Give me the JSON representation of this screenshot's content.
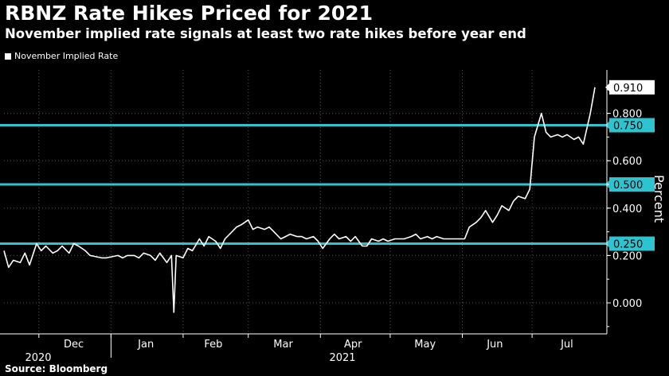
{
  "header": {
    "title": "RBNZ Rate Hikes Priced for 2021",
    "subtitle": "November implied rate signals at least two rate hikes before year end"
  },
  "legend": {
    "label": "November Implied Rate"
  },
  "source": "Source: Bloomberg",
  "colors": {
    "background": "#000000",
    "series": "#ffffff",
    "reference": "#2ec4cf",
    "grid": "#555555"
  },
  "chart_data": {
    "type": "line",
    "title": "RBNZ Rate Hikes Priced for 2021",
    "ylabel": "Percent",
    "ylim": [
      -0.12,
      1.0
    ],
    "yticks": [
      0.0,
      0.2,
      0.4,
      0.6,
      0.8
    ],
    "ytick_labels": [
      "0.000",
      "0.200",
      "0.400",
      "0.600",
      "0.800"
    ],
    "x_month_labels": [
      "Dec",
      "Jan",
      "Feb",
      "Mar",
      "Apr",
      "May",
      "Jun",
      "Jul"
    ],
    "x_year_labels": [
      "2020",
      "2021"
    ],
    "grid": true,
    "legend_position": "top-left",
    "reference_lines": [
      {
        "value": 0.75,
        "label": "0.750"
      },
      {
        "value": 0.5,
        "label": "0.500"
      },
      {
        "value": 0.25,
        "label": "0.250"
      }
    ],
    "last_value_label": "0.910",
    "series": [
      {
        "name": "November Implied Rate",
        "x": [
          "2020-11-16",
          "2020-11-18",
          "2020-11-20",
          "2020-11-23",
          "2020-11-25",
          "2020-11-27",
          "2020-11-30",
          "2020-12-02",
          "2020-12-04",
          "2020-12-07",
          "2020-12-09",
          "2020-12-11",
          "2020-12-14",
          "2020-12-16",
          "2020-12-18",
          "2020-12-21",
          "2020-12-23",
          "2020-12-28",
          "2020-12-30",
          "2021-01-04",
          "2021-01-06",
          "2021-01-08",
          "2021-01-11",
          "2021-01-13",
          "2021-01-15",
          "2021-01-18",
          "2021-01-20",
          "2021-01-22",
          "2021-01-25",
          "2021-01-27",
          "2021-01-28",
          "2021-01-29",
          "2021-02-01",
          "2021-02-03",
          "2021-02-05",
          "2021-02-08",
          "2021-02-10",
          "2021-02-12",
          "2021-02-15",
          "2021-02-17",
          "2021-02-19",
          "2021-02-22",
          "2021-02-24",
          "2021-02-26",
          "2021-03-01",
          "2021-03-03",
          "2021-03-05",
          "2021-03-08",
          "2021-03-10",
          "2021-03-12",
          "2021-03-15",
          "2021-03-17",
          "2021-03-19",
          "2021-03-22",
          "2021-03-24",
          "2021-03-26",
          "2021-03-29",
          "2021-03-31",
          "2021-04-02",
          "2021-04-05",
          "2021-04-07",
          "2021-04-09",
          "2021-04-12",
          "2021-04-14",
          "2021-04-16",
          "2021-04-19",
          "2021-04-21",
          "2021-04-23",
          "2021-04-26",
          "2021-04-28",
          "2021-04-30",
          "2021-05-03",
          "2021-05-05",
          "2021-05-07",
          "2021-05-10",
          "2021-05-12",
          "2021-05-14",
          "2021-05-17",
          "2021-05-19",
          "2021-05-21",
          "2021-05-24",
          "2021-05-26",
          "2021-05-28",
          "2021-05-31",
          "2021-06-02",
          "2021-06-04",
          "2021-06-07",
          "2021-06-09",
          "2021-06-11",
          "2021-06-14",
          "2021-06-16",
          "2021-06-18",
          "2021-06-21",
          "2021-06-23",
          "2021-06-25",
          "2021-06-28",
          "2021-06-30",
          "2021-07-02",
          "2021-07-05",
          "2021-07-07",
          "2021-07-09",
          "2021-07-12",
          "2021-07-14",
          "2021-07-16",
          "2021-07-19",
          "2021-07-21",
          "2021-07-23",
          "2021-07-26",
          "2021-07-28"
        ],
        "values": [
          0.22,
          0.15,
          0.18,
          0.17,
          0.21,
          0.16,
          0.25,
          0.22,
          0.24,
          0.21,
          0.22,
          0.24,
          0.21,
          0.25,
          0.24,
          0.22,
          0.2,
          0.19,
          0.19,
          0.2,
          0.19,
          0.2,
          0.2,
          0.19,
          0.21,
          0.2,
          0.18,
          0.21,
          0.17,
          0.2,
          -0.04,
          0.2,
          0.19,
          0.23,
          0.22,
          0.27,
          0.24,
          0.28,
          0.26,
          0.23,
          0.27,
          0.3,
          0.32,
          0.33,
          0.35,
          0.31,
          0.32,
          0.31,
          0.32,
          0.3,
          0.27,
          0.28,
          0.29,
          0.28,
          0.28,
          0.27,
          0.28,
          0.26,
          0.23,
          0.27,
          0.29,
          0.27,
          0.28,
          0.26,
          0.28,
          0.24,
          0.24,
          0.27,
          0.26,
          0.27,
          0.26,
          0.27,
          0.27,
          0.27,
          0.28,
          0.29,
          0.27,
          0.28,
          0.27,
          0.28,
          0.27,
          0.27,
          0.27,
          0.27,
          0.27,
          0.32,
          0.34,
          0.36,
          0.39,
          0.34,
          0.37,
          0.41,
          0.39,
          0.43,
          0.45,
          0.44,
          0.48,
          0.7,
          0.8,
          0.72,
          0.7,
          0.71,
          0.7,
          0.71,
          0.69,
          0.7,
          0.67,
          0.8,
          0.91
        ]
      }
    ]
  }
}
